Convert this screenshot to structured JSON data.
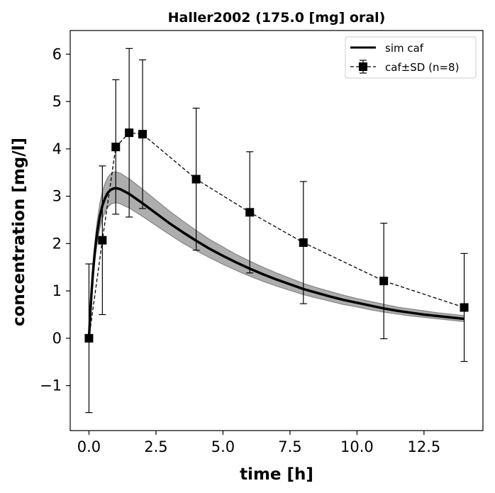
{
  "chart_data": {
    "type": "line",
    "title": "Haller2002 (175.0 [mg] oral)",
    "xlabel": "time [h]",
    "ylabel": "concentration [mg/l]",
    "xlim": [
      -0.7,
      14.7
    ],
    "ylim": [
      -1.95,
      6.5
    ],
    "xticks": [
      0.0,
      2.5,
      5.0,
      7.5,
      10.0,
      12.5
    ],
    "xtick_labels": [
      "0.0",
      "2.5",
      "5.0",
      "7.5",
      "10.0",
      "12.5"
    ],
    "yticks": [
      -1,
      0,
      1,
      2,
      3,
      4,
      5,
      6
    ],
    "ytick_labels": [
      "−1",
      "0",
      "1",
      "2",
      "3",
      "4",
      "5",
      "6"
    ],
    "grid": false,
    "legend_position": "top-right",
    "series": [
      {
        "name": "sim caf",
        "style": "solid",
        "color": "#000000",
        "x": [
          0,
          0.05,
          0.1,
          0.15,
          0.2,
          0.25,
          0.3,
          0.4,
          0.5,
          0.6,
          0.7,
          0.8,
          0.9,
          1.0,
          1.1,
          1.2,
          1.3,
          1.5,
          1.75,
          2.0,
          2.5,
          3.0,
          3.5,
          4.0,
          4.5,
          5.0,
          5.5,
          6.0,
          6.5,
          7.0,
          7.5,
          8.0,
          8.5,
          9.0,
          9.5,
          10.0,
          10.5,
          11.0,
          11.5,
          12.0,
          12.5,
          13.0,
          13.5,
          14.0
        ],
        "y": [
          0.0,
          0.54,
          1.0,
          1.39,
          1.71,
          1.98,
          2.21,
          2.56,
          2.8,
          2.96,
          3.07,
          3.13,
          3.16,
          3.17,
          3.16,
          3.14,
          3.11,
          3.05,
          2.95,
          2.85,
          2.64,
          2.43,
          2.24,
          2.06,
          1.89,
          1.74,
          1.6,
          1.47,
          1.35,
          1.24,
          1.14,
          1.04,
          0.96,
          0.88,
          0.81,
          0.75,
          0.69,
          0.63,
          0.58,
          0.54,
          0.5,
          0.47,
          0.44,
          0.41
        ],
        "band_upper": [
          0.0,
          0.6,
          1.12,
          1.55,
          1.9,
          2.2,
          2.45,
          2.84,
          3.1,
          3.28,
          3.4,
          3.47,
          3.51,
          3.52,
          3.5,
          3.48,
          3.44,
          3.37,
          3.26,
          3.15,
          2.92,
          2.69,
          2.48,
          2.28,
          2.09,
          1.93,
          1.77,
          1.63,
          1.5,
          1.38,
          1.27,
          1.16,
          1.07,
          0.99,
          0.91,
          0.84,
          0.78,
          0.72,
          0.66,
          0.62,
          0.58,
          0.54,
          0.51,
          0.48
        ],
        "band_lower": [
          0.0,
          0.48,
          0.89,
          1.24,
          1.53,
          1.77,
          1.98,
          2.3,
          2.52,
          2.66,
          2.76,
          2.82,
          2.85,
          2.86,
          2.85,
          2.83,
          2.8,
          2.75,
          2.66,
          2.57,
          2.38,
          2.19,
          2.01,
          1.85,
          1.7,
          1.56,
          1.43,
          1.31,
          1.2,
          1.1,
          1.01,
          0.92,
          0.85,
          0.78,
          0.71,
          0.66,
          0.6,
          0.55,
          0.51,
          0.47,
          0.44,
          0.41,
          0.38,
          0.35
        ]
      },
      {
        "name": "caf±SD (n=8)",
        "style": "dashed",
        "marker": "square",
        "color": "#000000",
        "x": [
          0.0,
          0.5,
          1.0,
          1.5,
          2.0,
          4.0,
          6.0,
          8.0,
          11.0,
          14.0
        ],
        "y": [
          0.0,
          2.07,
          4.04,
          4.34,
          4.31,
          3.36,
          2.66,
          2.02,
          1.21,
          0.65
        ],
        "sd": [
          1.57,
          1.57,
          1.42,
          1.78,
          1.57,
          1.5,
          1.28,
          1.29,
          1.22,
          1.14
        ]
      }
    ]
  }
}
